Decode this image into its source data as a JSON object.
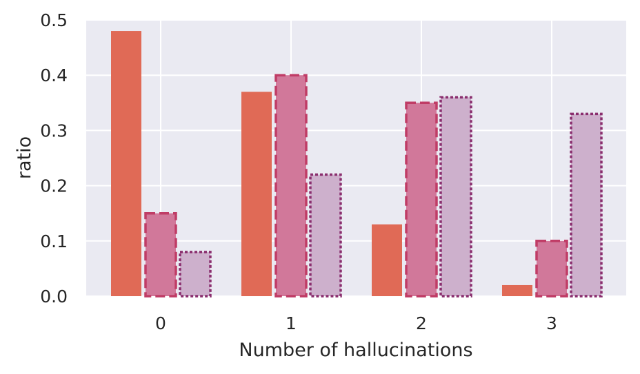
{
  "chart_data": {
    "type": "bar",
    "categories": [
      "0",
      "1",
      "2",
      "3"
    ],
    "series": [
      {
        "values": [
          0.48,
          0.37,
          0.13,
          0.02
        ],
        "fill": "#e06a56",
        "stroke": "#e06a56",
        "dash": "solid"
      },
      {
        "values": [
          0.15,
          0.4,
          0.35,
          0.1
        ],
        "fill": "#d1789a",
        "stroke": "#c03c66",
        "dash": "dashed"
      },
      {
        "values": [
          0.08,
          0.22,
          0.36,
          0.33
        ],
        "fill": "#cdb0cc",
        "stroke": "#8a2e6e",
        "dash": "dotted"
      }
    ],
    "xlabel": "Number of hallucinations",
    "ylabel": "ratio",
    "ylim": [
      0,
      0.5
    ],
    "yticks": [
      "0.0",
      "0.1",
      "0.2",
      "0.3",
      "0.4",
      "0.5"
    ],
    "grid": true,
    "background": "#eaeaf2"
  }
}
